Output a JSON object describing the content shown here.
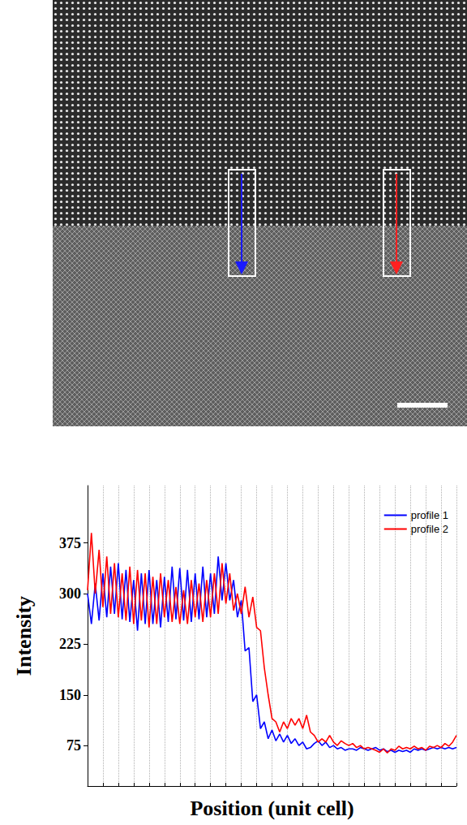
{
  "chart_data": {
    "type": "line",
    "x_label": "Position (unit cell)",
    "y_label": "Intensity",
    "x": [
      0,
      0.25,
      0.5,
      0.75,
      1,
      1.25,
      1.5,
      1.75,
      2,
      2.25,
      2.5,
      2.75,
      3,
      3.25,
      3.5,
      3.75,
      4,
      4.25,
      4.5,
      4.75,
      5,
      5.25,
      5.5,
      5.75,
      6,
      6.25,
      6.5,
      6.75,
      7,
      7.25,
      7.5,
      7.75,
      8,
      8.25,
      8.5,
      8.75,
      9,
      9.25,
      9.5,
      9.75,
      10,
      10.25,
      10.5,
      10.75,
      11,
      11.25,
      11.5,
      11.75,
      12,
      12.25,
      12.5,
      12.75,
      13,
      13.25,
      13.5,
      13.75,
      14,
      14.25,
      14.5,
      14.75,
      15,
      15.25,
      15.5,
      15.75,
      16,
      16.25,
      16.5,
      16.75,
      17,
      17.25,
      17.5,
      17.75,
      18,
      18.25,
      18.5,
      18.75,
      19,
      19.25,
      19.5,
      19.75,
      20,
      20.25,
      20.5,
      20.75,
      21,
      21.25,
      21.5,
      21.75,
      22,
      22.25,
      22.5,
      22.75,
      23,
      23.25,
      23.5,
      23.75,
      24
    ],
    "series": [
      {
        "name": "profile 1",
        "color": "#0000ff",
        "values": [
          300,
          255,
          315,
          260,
          330,
          265,
          340,
          270,
          345,
          262,
          335,
          258,
          320,
          245,
          330,
          255,
          335,
          255,
          320,
          250,
          325,
          258,
          340,
          262,
          338,
          260,
          335,
          258,
          330,
          262,
          340,
          265,
          330,
          270,
          355,
          290,
          345,
          290,
          320,
          265,
          290,
          215,
          220,
          140,
          150,
          100,
          110,
          85,
          98,
          82,
          92,
          80,
          90,
          78,
          85,
          75,
          80,
          70,
          72,
          78,
          82,
          75,
          80,
          72,
          75,
          70,
          72,
          68,
          70,
          70,
          68,
          72,
          70,
          68,
          70,
          72,
          68,
          70,
          66,
          68,
          65,
          68,
          66,
          68,
          65,
          70,
          68,
          70,
          68,
          70,
          72,
          70,
          72,
          70,
          72,
          70,
          72
        ]
      },
      {
        "name": "profile 2",
        "color": "#ff0000",
        "values": [
          305,
          390,
          300,
          365,
          280,
          355,
          270,
          345,
          265,
          330,
          260,
          340,
          255,
          335,
          260,
          330,
          250,
          325,
          255,
          330,
          265,
          320,
          258,
          310,
          255,
          305,
          255,
          320,
          265,
          315,
          258,
          320,
          265,
          330,
          270,
          345,
          285,
          330,
          275,
          300,
          270,
          310,
          265,
          295,
          250,
          245,
          190,
          150,
          115,
          110,
          95,
          110,
          100,
          115,
          105,
          115,
          100,
          120,
          95,
          90,
          80,
          85,
          80,
          90,
          80,
          75,
          82,
          78,
          75,
          78,
          72,
          75,
          70,
          72,
          70,
          68,
          65,
          70,
          64,
          70,
          68,
          74,
          70,
          72,
          70,
          74,
          70,
          72,
          68,
          74,
          72,
          75,
          72,
          78,
          74,
          80,
          90
        ]
      }
    ],
    "xlim": [
      0,
      24
    ],
    "ylim": [
      15,
      460
    ],
    "xticks": [
      0,
      1,
      2,
      3,
      4,
      5,
      6,
      7,
      8,
      9,
      10,
      11,
      12,
      13,
      14,
      15,
      16,
      17,
      18,
      19,
      20,
      21,
      22,
      23,
      24
    ],
    "yticks": [
      75,
      150,
      225,
      300,
      375
    ],
    "grid": "x",
    "tick_labels": "y",
    "legend": "upper right"
  }
}
